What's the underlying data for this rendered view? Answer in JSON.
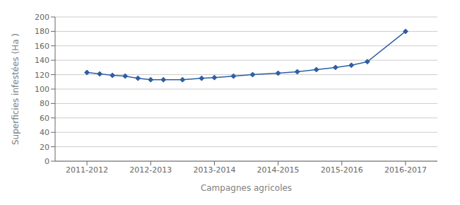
{
  "chart_data": {
    "type": "line",
    "x": [
      0.0,
      0.2,
      0.4,
      0.6,
      0.8,
      1.0,
      1.2,
      1.5,
      1.8,
      2.0,
      2.3,
      2.6,
      3.0,
      3.3,
      3.6,
      3.9,
      4.15,
      4.4,
      5.0
    ],
    "values": [
      123,
      121,
      119,
      118,
      115,
      113,
      113,
      113,
      115,
      116,
      118,
      120,
      122,
      124,
      127,
      130,
      133,
      138,
      180
    ],
    "color": "#2E5FA3",
    "marker": "diamond",
    "xlabel": "Campagnes agricoles",
    "ylabel": "Superficies infestées (Ha )",
    "xlim": [
      -0.5,
      5.5
    ],
    "xticks": [
      {
        "value": 0,
        "label": "2011-2012"
      },
      {
        "value": 1,
        "label": "2012-2013"
      },
      {
        "value": 2,
        "label": "2013-2014"
      },
      {
        "value": 3,
        "label": "2014-2015"
      },
      {
        "value": 4,
        "label": "2015-2016"
      },
      {
        "value": 5,
        "label": "2016-2017"
      }
    ],
    "ylim": [
      0,
      200
    ],
    "yticks": [
      0,
      20,
      40,
      60,
      80,
      100,
      120,
      140,
      160,
      180,
      200
    ],
    "grid": true
  }
}
